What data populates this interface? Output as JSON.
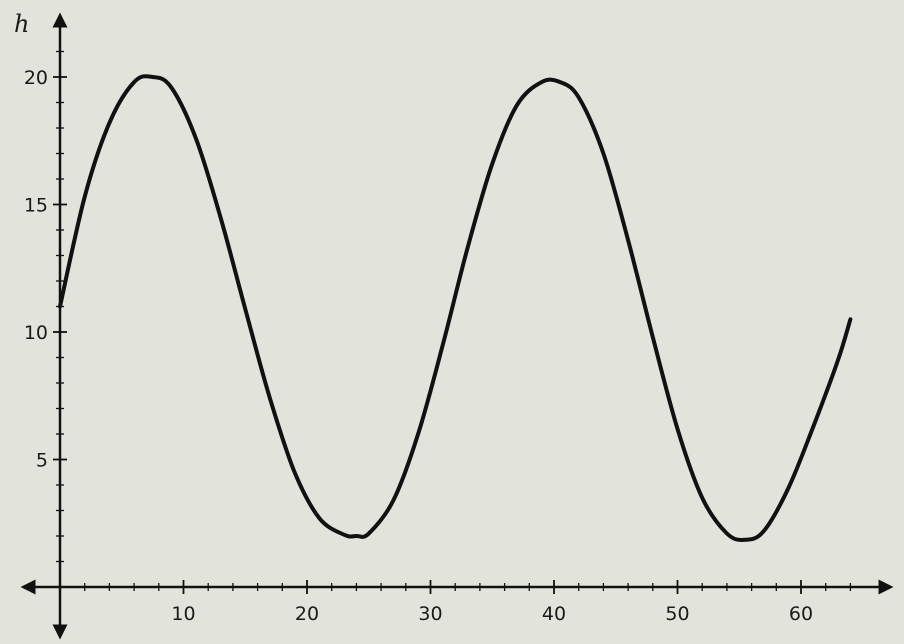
{
  "chart_data": {
    "type": "line",
    "title": "",
    "xlabel": "",
    "ylabel": "h",
    "xlim": [
      0,
      65
    ],
    "ylim": [
      0,
      21
    ],
    "x_ticks": [
      10,
      20,
      30,
      40,
      50,
      60
    ],
    "y_ticks": [
      5,
      10,
      15,
      20
    ],
    "grid": false,
    "series": [
      {
        "name": "",
        "color": "#111111",
        "x": [
          0,
          2,
          4,
          6,
          7.5,
          9,
          11,
          13,
          15,
          17,
          19,
          21,
          23,
          24,
          25,
          27,
          29,
          31,
          33,
          35,
          37,
          39,
          40.5,
          42,
          44,
          46,
          48,
          50,
          52,
          54,
          55.5,
          57,
          59,
          61,
          63,
          64
        ],
        "values": [
          11,
          15.3,
          18.2,
          19.8,
          20,
          19.6,
          17.6,
          14.5,
          10.9,
          7.4,
          4.5,
          2.7,
          2.05,
          2.0,
          2.1,
          3.4,
          6.0,
          9.5,
          13.3,
          16.6,
          18.9,
          19.8,
          19.8,
          19.2,
          17.0,
          13.6,
          9.8,
          6.2,
          3.5,
          2.1,
          1.85,
          2.2,
          3.9,
          6.3,
          8.9,
          10.5
        ]
      }
    ]
  }
}
